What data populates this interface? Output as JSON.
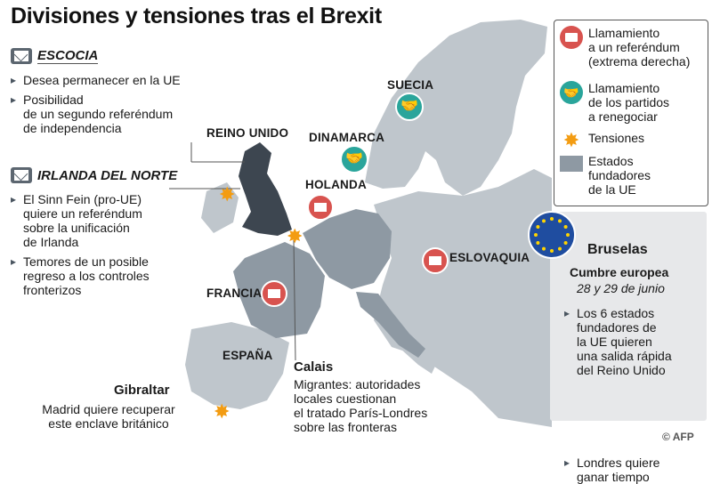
{
  "title": "Divisiones y tensiones tras el Brexit",
  "escocia": {
    "heading": "ESCOCIA",
    "bullets": [
      "Desea permanecer en la UE",
      "Posibilidad\nde un segundo referéndum\nde independencia"
    ]
  },
  "irlanda": {
    "heading": "IRLANDA DEL NORTE",
    "bullets": [
      "El Sinn Fein (pro-UE)\nquiere un referéndum\nsobre la unificación\nde Irlanda",
      "Temores de un posible\nregreso a los controles\nfronterizos"
    ]
  },
  "countries": {
    "reino_unido": "REINO UNIDO",
    "suecia": "SUECIA",
    "dinamarca": "DINAMARCA",
    "holanda": "HOLANDA",
    "eslovaquia": "ESLOVAQUIA",
    "francia": "FRANCIA",
    "espana": "ESPAÑA"
  },
  "legend": {
    "referendum": "Llamamiento\na un referéndum\n(extrema derecha)",
    "renegociar": "Llamamiento\nde los partidos\na renegociar",
    "tensiones": "Tensiones",
    "fundadores": "Estados\nfundadores\nde la UE"
  },
  "bruselas": {
    "title": "Bruselas",
    "subtitle": "Cumbre europea",
    "date": "28 y 29 de junio",
    "bullets": [
      "Los 6 estados\nfundadores de\nla UE quieren\nuna salida rápida\ndel Reino Unido",
      "Londres quiere\nganar tiempo"
    ]
  },
  "calais": {
    "title": "Calais",
    "text": "Migrantes: autoridades\nlocales cuestionan\nel tratado París-Londres\nsobre las fronteras"
  },
  "gibraltar": {
    "title": "Gibraltar",
    "text": "Madrid quiere recuperar\neste enclave británico"
  },
  "credit": "© AFP",
  "colors": {
    "sea": "#ffffff",
    "land": "#bfc6cc",
    "founders": "#8e99a3",
    "uk": "#3d4650",
    "red": "#d8534f",
    "teal": "#2aa59b",
    "orange": "#f39c12"
  }
}
